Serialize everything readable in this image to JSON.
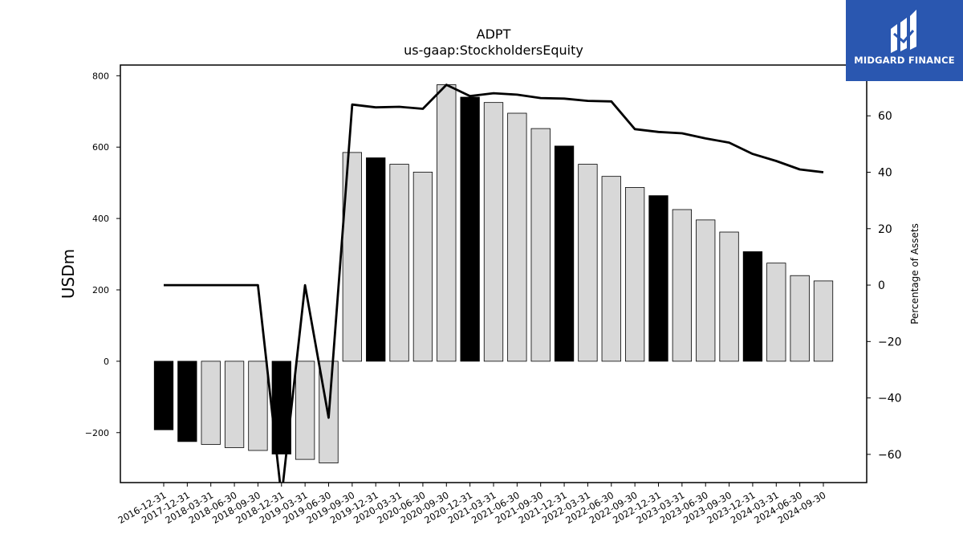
{
  "logo": {
    "text": "MIDGARD FINANCE",
    "background": "#2a57b0"
  },
  "chart_data": {
    "type": "bar",
    "title": "ADPT",
    "subtitle": "us-gaap:StockholdersEquity",
    "ylabel": "USDm",
    "y2label": "Percentage of Assets",
    "ylim": [
      -340,
      830
    ],
    "y2lim": [
      -70,
      78
    ],
    "yticks": [
      -200,
      0,
      200,
      400,
      600,
      800
    ],
    "y2ticks": [
      -60,
      -40,
      -20,
      0,
      20,
      40,
      60
    ],
    "categories": [
      "2016-12-31",
      "2017-12-31",
      "2018-03-31",
      "2018-06-30",
      "2018-09-30",
      "2018-12-31",
      "2019-03-31",
      "2019-06-30",
      "2019-09-30",
      "2019-12-31",
      "2020-03-31",
      "2020-06-30",
      "2020-09-30",
      "2020-12-31",
      "2021-03-31",
      "2021-06-30",
      "2021-09-30",
      "2021-12-31",
      "2022-03-31",
      "2022-06-30",
      "2022-09-30",
      "2022-12-31",
      "2023-03-31",
      "2023-06-30",
      "2023-09-30",
      "2023-12-31",
      "2024-03-31",
      "2024-06-30",
      "2024-09-30"
    ],
    "values": [
      -192,
      -225,
      -233,
      -242,
      -250,
      -260,
      -275,
      -285,
      585,
      570,
      552,
      530,
      775,
      740,
      725,
      695,
      652,
      603,
      552,
      518,
      487,
      464,
      425,
      396,
      362,
      307,
      275,
      240,
      225
    ],
    "year_end": [
      true,
      true,
      false,
      false,
      false,
      true,
      false,
      false,
      false,
      true,
      false,
      false,
      false,
      true,
      false,
      false,
      false,
      true,
      false,
      false,
      false,
      true,
      false,
      false,
      false,
      true,
      false,
      false,
      false
    ],
    "line_series": {
      "values": [
        0,
        0,
        0,
        0,
        0,
        -75,
        0,
        -47,
        64,
        63,
        63.2,
        62.5,
        71,
        67,
        68,
        67.5,
        66.3,
        66.1,
        65.3,
        65.1,
        55.3,
        54.3,
        53.8,
        52,
        50.5,
        46.5,
        44,
        41,
        40
      ]
    },
    "colors": {
      "year_end_bar": "#000000",
      "bar": "#d8d8d8",
      "bar_edge": "#000000",
      "line": "#000000"
    },
    "grid": false
  }
}
